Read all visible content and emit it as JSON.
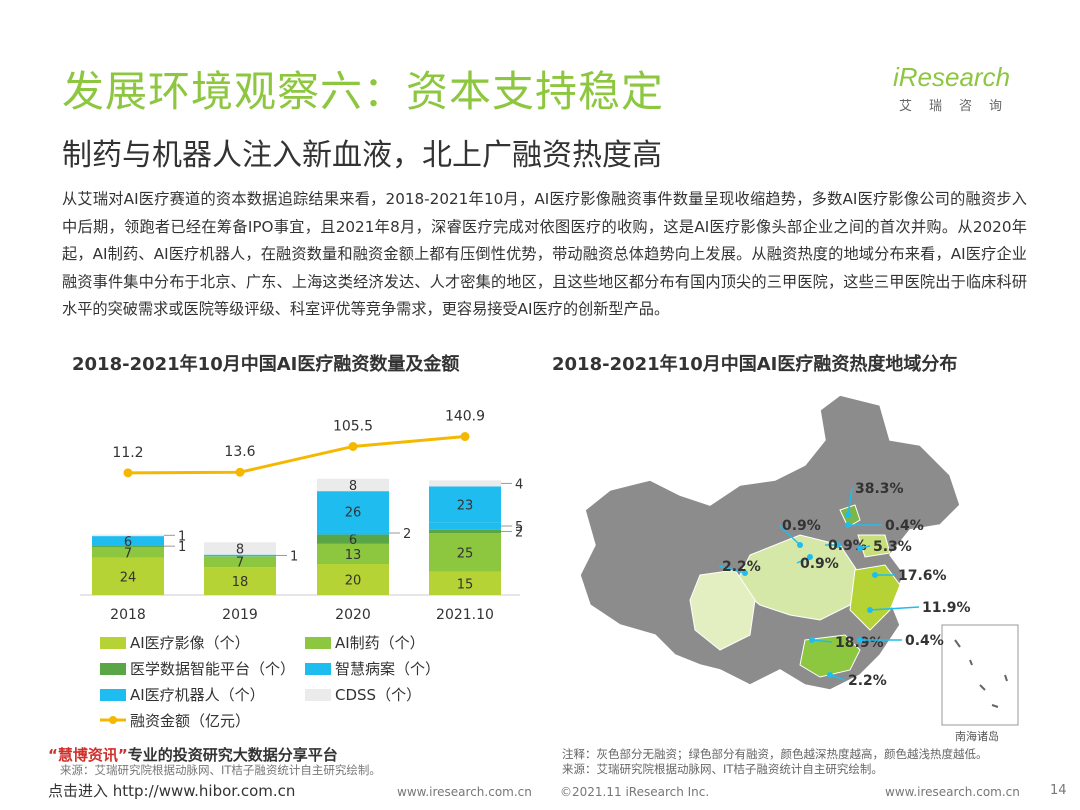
{
  "header": {
    "title": "发展环境观察六：资本支持稳定",
    "subtitle": "制药与机器人注入新血液，北上广融资热度高",
    "logo_text": "iResearch",
    "logo_sub": "艾瑞咨询"
  },
  "body_text": "从艾瑞对AI医疗赛道的资本数据追踪结果来看，2018-2021年10月，AI医疗影像融资事件数量呈现收缩趋势，多数AI医疗影像公司的融资步入中后期，领跑者已经在筹备IPO事宜，且2021年8月，深睿医疗完成对依图医疗的收购，这是AI医疗影像头部企业之间的首次并购。从2020年起，AI制药、AI医疗机器人，在融资数量和融资金额上都有压倒性优势，带动融资总体趋势向上发展。从融资热度的地域分布来看，AI医疗企业融资事件集中分布于北京、广东、上海这类经济发达、人才密集的地区，且这些地区都分布有国内顶尖的三甲医院，这些三甲医院出于临床科研水平的突破需求或医院等级评级、科室评优等竞争需求，更容易接受AI医疗的创新型产品。",
  "left_chart_title": "2018-2021年10月中国AI医疗融资数量及金额",
  "right_chart_title": "2018-2021年10月中国AI医疗融资热度地域分布",
  "chart_data": [
    {
      "type": "bar",
      "stacked": true,
      "categories": [
        "2018",
        "2019",
        "2020",
        "2021.10"
      ],
      "series": [
        {
          "name": "AI医疗影像（个）",
          "color": "#b5d334",
          "values": [
            24,
            18,
            20,
            15
          ]
        },
        {
          "name": "AI制药（个）",
          "color": "#8dc63f",
          "values": [
            7,
            7,
            13,
            25
          ]
        },
        {
          "name": "医学数据智能平台（个）",
          "color": "#5aa546",
          "values": [
            1,
            0,
            6,
            2
          ]
        },
        {
          "name": "智慧病案（个）",
          "color": "#1fbdef",
          "values": [
            6,
            1,
            2,
            5
          ]
        },
        {
          "name": "AI医疗机器人（个）",
          "color": "#1fbdef",
          "values": [
            0,
            0,
            26,
            23
          ]
        },
        {
          "name": "CDSS（个）",
          "color": "#ebebeb",
          "values": [
            1,
            8,
            8,
            4
          ]
        }
      ],
      "segment_labels": [
        [
          "24",
          "7",
          "1",
          "6",
          "",
          "1"
        ],
        [
          "18",
          "7",
          "",
          "1",
          "",
          "8"
        ],
        [
          "20",
          "13",
          "6",
          "2",
          "26",
          "8"
        ],
        [
          "15",
          "25",
          "2",
          "5",
          "23",
          "4"
        ]
      ],
      "line": {
        "name": "融资金额（亿元）",
        "color": "#f5b800",
        "values": [
          11.2,
          13.6,
          105.5,
          140.9
        ]
      }
    },
    {
      "type": "map",
      "legend_text": "南海诸岛",
      "regions": [
        {
          "label": "38.3%"
        },
        {
          "label": "0.9%"
        },
        {
          "label": "0.4%"
        },
        {
          "label": "0.9%"
        },
        {
          "label": "5.3%"
        },
        {
          "label": "2.2%"
        },
        {
          "label": "0.9%"
        },
        {
          "label": "17.6%"
        },
        {
          "label": "11.9%"
        },
        {
          "label": "18.9%"
        },
        {
          "label": "0.4%"
        },
        {
          "label": "2.2%"
        }
      ]
    }
  ],
  "notes": {
    "line1": "注释：灰色部分无融资；绿色部分有融资，颜色越深热度越高，颜色越浅热度越低。",
    "line2": "来源：艾瑞研究院根据动脉网、IT桔子融资统计自主研究绘制。"
  },
  "watermark": {
    "line1_red": "“慧博资讯”",
    "line1_rest": "专业的投资研究大数据分享平台",
    "line1_note": "来源：艾瑞研究院根据动脉网、IT桔子融资统计自主研究绘制。",
    "line2": "点击进入 http://www.hibor.com.cn"
  },
  "footer": {
    "url_left": "www.iresearch.com.cn",
    "copyright": "©2021.11 iResearch Inc.",
    "url_right": "www.iresearch.com.cn",
    "page": "14"
  }
}
